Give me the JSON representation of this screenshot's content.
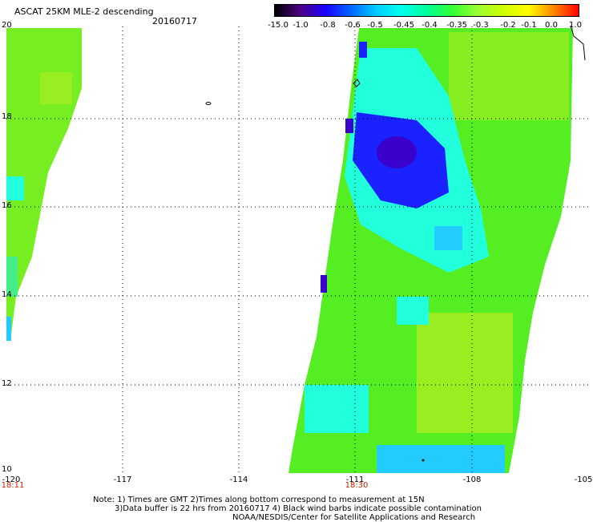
{
  "header": {
    "title": "ASCAT 25KM MLE-2 descending",
    "date": "20160717"
  },
  "colorbar": {
    "labels": [
      "-15.0",
      "-1.0",
      "-0.8",
      "-0.6",
      "-0.5",
      "-0.45",
      "-0.4",
      "-0.35",
      "-0.3",
      "-0.2",
      "-0.1",
      "0.0",
      "1.0"
    ],
    "colors": [
      "#000000",
      "#4b0082",
      "#1a00ff",
      "#0066ff",
      "#00ccff",
      "#00ffee",
      "#00ff99",
      "#33ff33",
      "#99ff33",
      "#ccff00",
      "#ffff00",
      "#ff8800",
      "#ff0000"
    ]
  },
  "axes": {
    "lat_labels": [
      "20",
      "18",
      "16",
      "14",
      "12",
      "10"
    ],
    "lon_labels": [
      "-120",
      "-117",
      "-114",
      "-111",
      "-108",
      "-105"
    ]
  },
  "times": {
    "left": "18:11",
    "mid": "18:30"
  },
  "notes": {
    "line1": "Note: 1) Times are GMT 2)Times along bottom correspond to measurement at 15N",
    "line2": "3)Data buffer is 22 hrs from 20160717 4) Black wind barbs indicate possible contamination",
    "line3": "NOAA/NESDIS/Center for Satellite Applications and Research"
  },
  "swath_colors": {
    "green": "#55ee22",
    "lime": "#99ee22",
    "cyan": "#22ffdd",
    "aqua": "#22ccff",
    "blue": "#1a22ff",
    "indigo": "#3a00cc"
  }
}
